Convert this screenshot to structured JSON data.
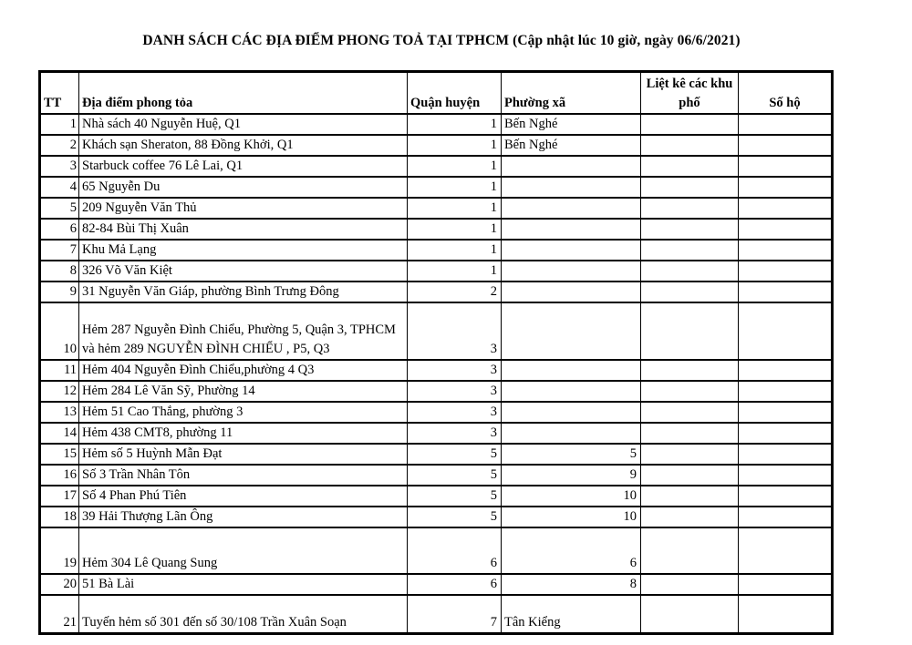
{
  "colors": {
    "text": "#000000",
    "border": "#000000",
    "background": "#ffffff"
  },
  "page": {
    "title": "DANH SÁCH CÁC ĐỊA ĐIỂM PHONG TOẢ TẠI TPHCM (Cập nhật lúc 10 giờ, ngày 06/6/2021)"
  },
  "table": {
    "columns": [
      {
        "key": "tt",
        "label": "TT"
      },
      {
        "key": "dia_diem",
        "label": "Địa điểm phong tỏa"
      },
      {
        "key": "quan_huyen",
        "label": "Quận huyện"
      },
      {
        "key": "phuong_xa",
        "label": "Phường xã"
      },
      {
        "key": "khu_pho",
        "label": "Liệt kê các khu phố"
      },
      {
        "key": "so_ho",
        "label": "Số hộ"
      }
    ],
    "rows": [
      {
        "tt": "1",
        "dia_diem": "Nhà sách 40 Nguyễn Huệ, Q1",
        "quan_huyen": "1",
        "phuong_xa": "Bến Nghé",
        "khu_pho": "",
        "so_ho": ""
      },
      {
        "tt": "2",
        "dia_diem": "Khách sạn Sheraton, 88 Đồng Khởi, Q1",
        "quan_huyen": "1",
        "phuong_xa": "Bến Nghé",
        "khu_pho": "",
        "so_ho": ""
      },
      {
        "tt": "3",
        "dia_diem": "Starbuck coffee 76 Lê Lai, Q1",
        "quan_huyen": "1",
        "phuong_xa": "",
        "khu_pho": "",
        "so_ho": ""
      },
      {
        "tt": "4",
        "dia_diem": "65 Nguyễn Du",
        "quan_huyen": "1",
        "phuong_xa": "",
        "khu_pho": "",
        "so_ho": ""
      },
      {
        "tt": "5",
        "dia_diem": "209 Nguyễn Văn Thủ",
        "quan_huyen": "1",
        "phuong_xa": "",
        "khu_pho": "",
        "so_ho": ""
      },
      {
        "tt": "6",
        "dia_diem": "82-84 Bùi Thị Xuân",
        "quan_huyen": "1",
        "phuong_xa": "",
        "khu_pho": "",
        "so_ho": ""
      },
      {
        "tt": "7",
        "dia_diem": "Khu Mả Lạng",
        "quan_huyen": "1",
        "phuong_xa": "",
        "khu_pho": "",
        "so_ho": ""
      },
      {
        "tt": "8",
        "dia_diem": "326 Võ Văn Kiệt",
        "quan_huyen": "1",
        "phuong_xa": "",
        "khu_pho": "",
        "so_ho": ""
      },
      {
        "tt": "9",
        "dia_diem": "31 Nguyễn Văn Giáp, phường Bình Trưng Đông",
        "quan_huyen": "2",
        "phuong_xa": "",
        "khu_pho": "",
        "so_ho": ""
      },
      {
        "tt": "10",
        "dia_diem": "Hẻm 287 Nguyễn Đình Chiểu, Phường 5, Quận 3, TPHCM  và hẻm 289 NGUYỄN ĐÌNH CHIỂU , P5, Q3",
        "quan_huyen": "3",
        "phuong_xa": "",
        "khu_pho": "",
        "so_ho": ""
      },
      {
        "tt": "11",
        "dia_diem": "Hẻm 404 Nguyễn Đình Chiểu,phường 4 Q3",
        "quan_huyen": "3",
        "phuong_xa": "",
        "khu_pho": "",
        "so_ho": ""
      },
      {
        "tt": "12",
        "dia_diem": "Hẻm 284 Lê Văn Sỹ, Phường 14",
        "quan_huyen": "3",
        "phuong_xa": "",
        "khu_pho": "",
        "so_ho": ""
      },
      {
        "tt": "13",
        "dia_diem": "Hẻm 51 Cao Thắng, phường 3",
        "quan_huyen": "3",
        "phuong_xa": "",
        "khu_pho": "",
        "so_ho": ""
      },
      {
        "tt": "14",
        "dia_diem": "Hẻm 438 CMT8, phường 11",
        "quan_huyen": "3",
        "phuong_xa": "",
        "khu_pho": "",
        "so_ho": ""
      },
      {
        "tt": "15",
        "dia_diem": "Hẻm số 5 Huỳnh Mẫn Đạt",
        "quan_huyen": "5",
        "phuong_xa": "5",
        "khu_pho": "",
        "so_ho": ""
      },
      {
        "tt": "16",
        "dia_diem": "Số 3 Trần Nhân Tôn",
        "quan_huyen": "5",
        "phuong_xa": "9",
        "khu_pho": "",
        "so_ho": ""
      },
      {
        "tt": "17",
        "dia_diem": "Số 4 Phan Phú Tiên",
        "quan_huyen": "5",
        "phuong_xa": "10",
        "khu_pho": "",
        "so_ho": ""
      },
      {
        "tt": "18",
        "dia_diem": "39 Hải Thượng Lãn Ông",
        "quan_huyen": "5",
        "phuong_xa": "10",
        "khu_pho": "",
        "so_ho": ""
      },
      {
        "tt": "19",
        "dia_diem": "Hẻm 304 Lê Quang Sung",
        "quan_huyen": "6",
        "phuong_xa": "6",
        "khu_pho": "",
        "so_ho": ""
      },
      {
        "tt": "20",
        "dia_diem": "51 Bà Lài",
        "quan_huyen": "6",
        "phuong_xa": "8",
        "khu_pho": "",
        "so_ho": ""
      },
      {
        "tt": "21",
        "dia_diem": "Tuyến hẻm số 301 đến số 30/108 Trần Xuân Soạn",
        "quan_huyen": "7",
        "phuong_xa": "Tân Kiểng",
        "khu_pho": "",
        "so_ho": ""
      }
    ]
  }
}
